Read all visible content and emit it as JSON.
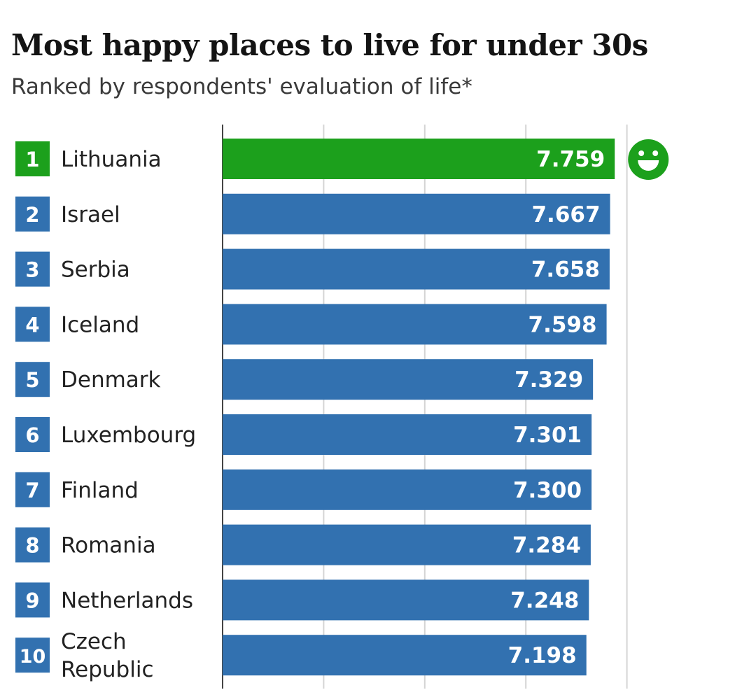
{
  "header": {
    "title": "Most happy places to live for under 30s",
    "subtitle": "Ranked by respondents' evaluation of life*"
  },
  "colors": {
    "highlight": "#1ca01c",
    "bar": "#3271b0",
    "grid": "#d4d4d4",
    "axis": "#444444",
    "text": "#222222"
  },
  "chart_data": {
    "type": "bar",
    "orientation": "horizontal",
    "title": "Most happy places to live for under 30s",
    "subtitle": "Ranked by respondents' evaluation of life*",
    "ranks": [
      "1",
      "2",
      "3",
      "4",
      "5",
      "6",
      "7",
      "8",
      "9",
      "10"
    ],
    "categories": [
      "Lithuania",
      "Israel",
      "Serbia",
      "Iceland",
      "Denmark",
      "Luxembourg",
      "Finland",
      "Romania",
      "Netherlands",
      "Czech Republic"
    ],
    "values": [
      7.759,
      7.667,
      7.658,
      7.598,
      7.329,
      7.301,
      7.3,
      7.284,
      7.248,
      7.198
    ],
    "value_labels": [
      "7.759",
      "7.667",
      "7.658",
      "7.598",
      "7.329",
      "7.301",
      "7.300",
      "7.284",
      "7.248",
      "7.198"
    ],
    "highlight_index": 0,
    "highlight_icon": "smiley-face-icon",
    "xlim": [
      0,
      8.5
    ],
    "gridlines": [
      0,
      2,
      4,
      6,
      8
    ],
    "grid": true,
    "xlabel": "",
    "ylabel": ""
  }
}
